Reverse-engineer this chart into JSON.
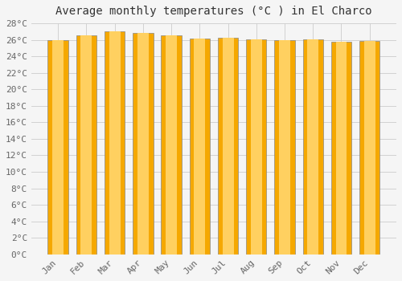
{
  "title": "Average monthly temperatures (°C ) in El Charco",
  "months": [
    "Jan",
    "Feb",
    "Mar",
    "Apr",
    "May",
    "Jun",
    "Jul",
    "Aug",
    "Sep",
    "Oct",
    "Nov",
    "Dec"
  ],
  "values": [
    26.0,
    26.5,
    27.0,
    26.8,
    26.5,
    26.2,
    26.3,
    26.1,
    26.0,
    26.1,
    25.8,
    25.9
  ],
  "bar_color_center": "#FFD060",
  "bar_color_edge": "#F5A800",
  "bar_border_color": "#888888",
  "ylim": [
    0,
    28
  ],
  "ytick_step": 2,
  "background_color": "#f5f5f5",
  "grid_color": "#cccccc",
  "title_fontsize": 10,
  "tick_fontsize": 8,
  "tick_label_color": "#666666",
  "font_family": "monospace",
  "bar_width": 0.72
}
